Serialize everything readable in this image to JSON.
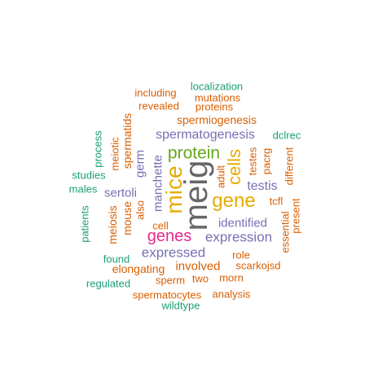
{
  "colors": {
    "gray": "#666666",
    "orange": "#D95F02",
    "teal": "#1B9E77",
    "purple": "#7570B3",
    "green": "#66A61E",
    "gold": "#E6AB02",
    "magenta": "#E7298A"
  },
  "words": [
    {
      "id": "meig",
      "text": "meig",
      "color": "gray"
    },
    {
      "id": "mice",
      "text": "mice",
      "color": "gold"
    },
    {
      "id": "genes",
      "text": "genes",
      "color": "magenta"
    },
    {
      "id": "gene",
      "text": "gene",
      "color": "gold"
    },
    {
      "id": "protein",
      "text": "protein",
      "color": "green"
    },
    {
      "id": "cells",
      "text": "cells",
      "color": "gold"
    },
    {
      "id": "spermatogenesis",
      "text": "spermatogenesis",
      "color": "purple"
    },
    {
      "id": "expressed",
      "text": "expressed",
      "color": "purple"
    },
    {
      "id": "expression",
      "text": "expression",
      "color": "purple"
    },
    {
      "id": "identified",
      "text": "identified",
      "color": "purple"
    },
    {
      "id": "testis",
      "text": "testis",
      "color": "purple"
    },
    {
      "id": "sertoli",
      "text": "sertoli",
      "color": "purple"
    },
    {
      "id": "manchette",
      "text": "manchette",
      "color": "purple"
    },
    {
      "id": "germ",
      "text": "germ",
      "color": "purple"
    },
    {
      "id": "involved",
      "text": "involved",
      "color": "orange"
    },
    {
      "id": "spermiogenesis",
      "text": "spermiogenesis",
      "color": "orange"
    },
    {
      "id": "meiosis",
      "text": "meiosis",
      "color": "orange"
    },
    {
      "id": "mouse",
      "text": "mouse",
      "color": "orange"
    },
    {
      "id": "spermatids",
      "text": "spermatids",
      "color": "orange"
    },
    {
      "id": "meiotic",
      "text": "meiotic",
      "color": "orange"
    },
    {
      "id": "elongating",
      "text": "elongating",
      "color": "orange"
    },
    {
      "id": "spermatocytes",
      "text": "spermatocytes",
      "color": "orange"
    },
    {
      "id": "analysis",
      "text": "analysis",
      "color": "orange"
    },
    {
      "id": "sperm",
      "text": "sperm",
      "color": "orange"
    },
    {
      "id": "two",
      "text": "two",
      "color": "orange"
    },
    {
      "id": "morn",
      "text": "morn",
      "color": "orange"
    },
    {
      "id": "scarkojsd",
      "text": "scarkojsd",
      "color": "orange"
    },
    {
      "id": "role",
      "text": "role",
      "color": "orange"
    },
    {
      "id": "cell",
      "text": "cell",
      "color": "orange"
    },
    {
      "id": "also",
      "text": "also",
      "color": "orange"
    },
    {
      "id": "adult",
      "text": "adult",
      "color": "orange"
    },
    {
      "id": "testes",
      "text": "testes",
      "color": "orange"
    },
    {
      "id": "pacrg",
      "text": "pacrg",
      "color": "orange"
    },
    {
      "id": "tcfl",
      "text": "tcfl",
      "color": "orange"
    },
    {
      "id": "essential",
      "text": "essential",
      "color": "orange"
    },
    {
      "id": "present",
      "text": "present",
      "color": "orange"
    },
    {
      "id": "different",
      "text": "different",
      "color": "orange"
    },
    {
      "id": "including",
      "text": "including",
      "color": "orange"
    },
    {
      "id": "revealed",
      "text": "revealed",
      "color": "orange"
    },
    {
      "id": "mutations",
      "text": "mutations",
      "color": "orange"
    },
    {
      "id": "proteins",
      "text": "proteins",
      "color": "orange"
    },
    {
      "id": "localization",
      "text": "localization",
      "color": "teal"
    },
    {
      "id": "dclrec",
      "text": "dclrec",
      "color": "teal"
    },
    {
      "id": "process",
      "text": "process",
      "color": "teal"
    },
    {
      "id": "studies",
      "text": "studies",
      "color": "teal"
    },
    {
      "id": "males",
      "text": "males",
      "color": "teal"
    },
    {
      "id": "patients",
      "text": "patients",
      "color": "teal"
    },
    {
      "id": "found",
      "text": "found",
      "color": "teal"
    },
    {
      "id": "regulated",
      "text": "regulated",
      "color": "teal"
    },
    {
      "id": "wildtype",
      "text": "wildtype",
      "color": "teal"
    }
  ]
}
